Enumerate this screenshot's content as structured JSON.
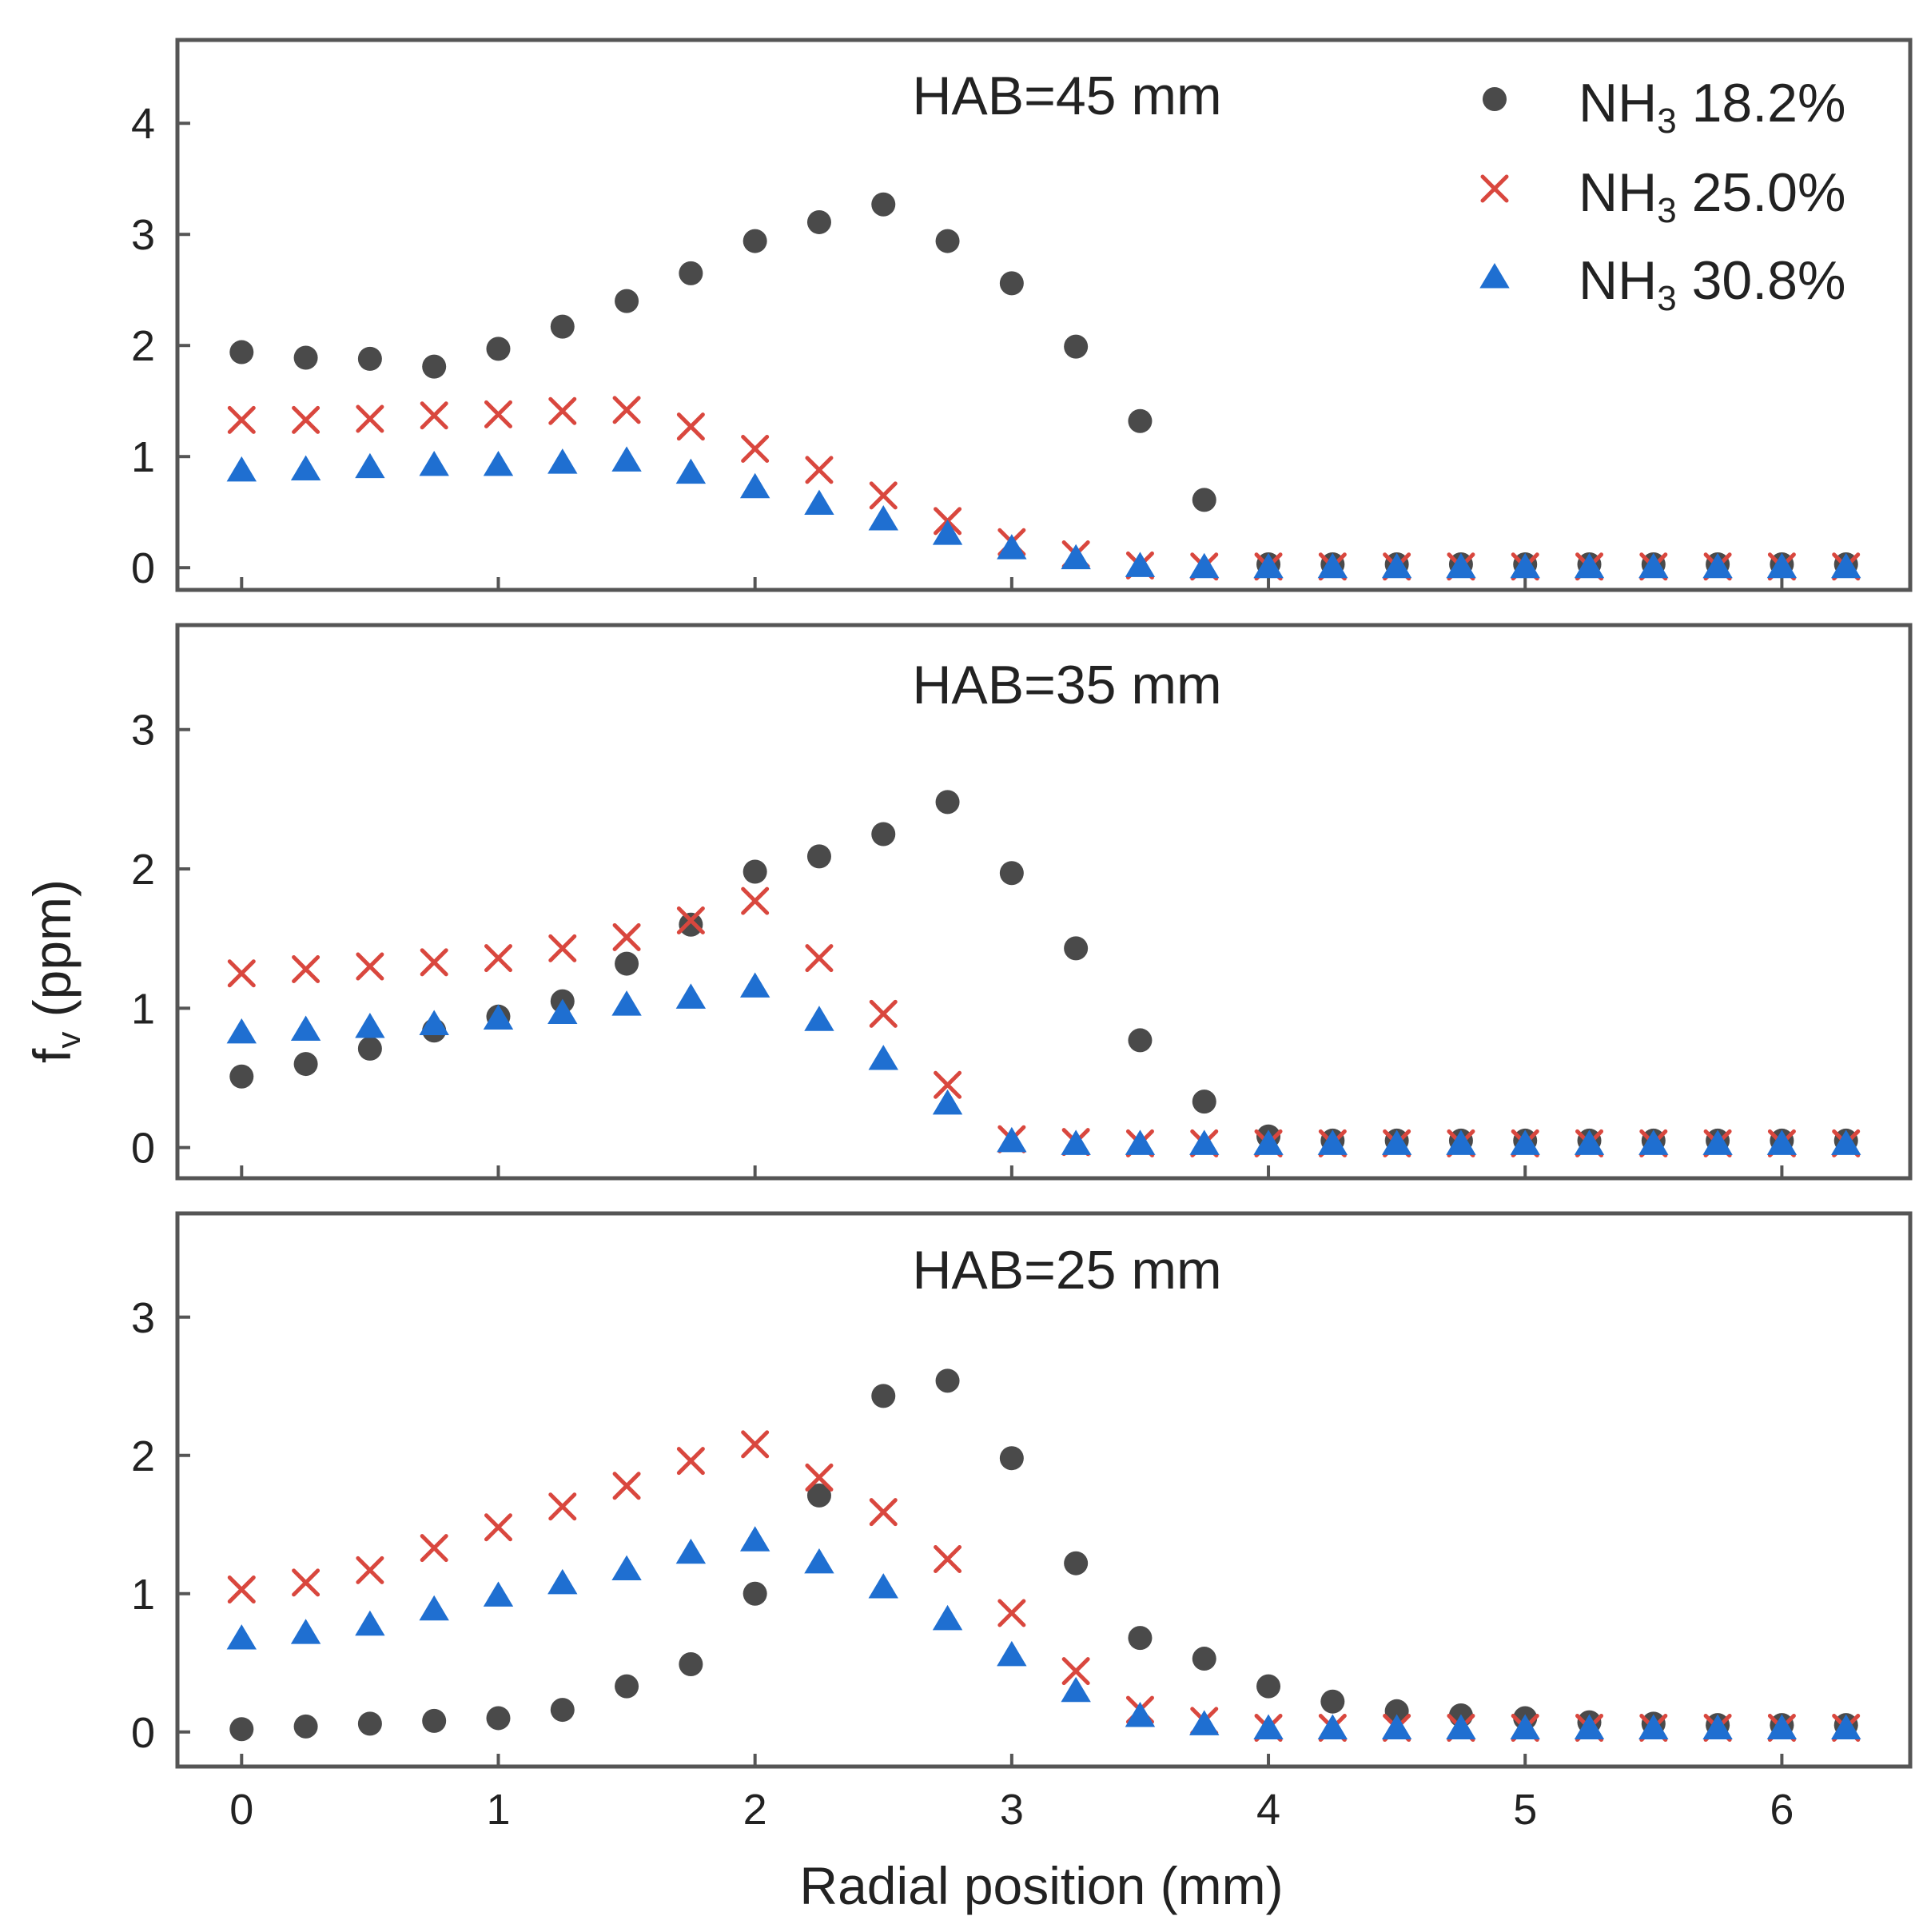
{
  "chart_data": {
    "type": "scatter",
    "xlabel": "Radial position (mm)",
    "ylabel_main": "f",
    "ylabel_sub": "v",
    "ylabel_unit": " (ppm)",
    "x": [
      0,
      0.25,
      0.5,
      0.75,
      1,
      1.25,
      1.5,
      1.75,
      2,
      2.25,
      2.5,
      2.75,
      3,
      3.25,
      3.5,
      3.75,
      4,
      4.25,
      4.5,
      4.75,
      5,
      5.25,
      5.5,
      5.75,
      6,
      6.25
    ],
    "xlim": [
      -0.25,
      6.5
    ],
    "xticks": [
      0,
      1,
      2,
      3,
      4,
      5,
      6
    ],
    "series_meta": [
      {
        "name_main": "NH",
        "name_sub": "3",
        "name_rest": " 18.2%",
        "marker": "circle",
        "color": "#4a4a4a"
      },
      {
        "name_main": "NH",
        "name_sub": "3",
        "name_rest": " 25.0%",
        "marker": "x",
        "color": "#d9473e"
      },
      {
        "name_main": "NH",
        "name_sub": "3",
        "name_rest": " 30.8%",
        "marker": "triangle",
        "color": "#1f6fd1"
      }
    ],
    "legend_position": "top-right",
    "panels": [
      {
        "title": "HAB=45 mm",
        "ylim": [
          -0.2,
          4.75
        ],
        "yticks": [
          0,
          1,
          2,
          3,
          4
        ],
        "series": [
          [
            1.94,
            1.89,
            1.88,
            1.81,
            1.97,
            2.17,
            2.4,
            2.65,
            2.94,
            3.11,
            3.27,
            2.94,
            2.56,
            1.99,
            1.32,
            0.61,
            0.03,
            0.03,
            0.03,
            0.03,
            0.03,
            0.03,
            0.03,
            0.03,
            0.03,
            0.03
          ],
          [
            1.33,
            1.33,
            1.34,
            1.37,
            1.38,
            1.41,
            1.42,
            1.27,
            1.07,
            0.88,
            0.65,
            0.42,
            0.23,
            0.12,
            0.02,
            0.01,
            0.01,
            0.01,
            0.01,
            0.01,
            0.01,
            0.01,
            0.01,
            0.01,
            0.01,
            0.01
          ],
          [
            0.88,
            0.89,
            0.91,
            0.93,
            0.93,
            0.95,
            0.97,
            0.86,
            0.73,
            0.58,
            0.44,
            0.31,
            0.18,
            0.09,
            0.02,
            0.01,
            0.01,
            0.01,
            0.01,
            0.01,
            0.01,
            0.01,
            0.01,
            0.01,
            0.01,
            0.01
          ]
        ]
      },
      {
        "title": "HAB=35 mm",
        "ylim": [
          -0.22,
          3.75
        ],
        "yticks": [
          0,
          1,
          2,
          3
        ],
        "series": [
          [
            0.51,
            0.6,
            0.71,
            0.84,
            0.94,
            1.05,
            1.32,
            1.6,
            1.98,
            2.09,
            2.25,
            2.48,
            1.97,
            1.43,
            0.77,
            0.33,
            0.08,
            0.05,
            0.05,
            0.05,
            0.05,
            0.05,
            0.05,
            0.05,
            0.05,
            0.05
          ],
          [
            1.25,
            1.28,
            1.3,
            1.33,
            1.36,
            1.43,
            1.51,
            1.63,
            1.77,
            1.36,
            0.96,
            0.45,
            0.06,
            0.04,
            0.03,
            0.03,
            0.03,
            0.03,
            0.03,
            0.03,
            0.03,
            0.03,
            0.03,
            0.03,
            0.03,
            0.03
          ],
          [
            0.83,
            0.85,
            0.87,
            0.89,
            0.93,
            0.97,
            1.03,
            1.08,
            1.16,
            0.92,
            0.64,
            0.32,
            0.05,
            0.03,
            0.03,
            0.03,
            0.03,
            0.03,
            0.03,
            0.03,
            0.03,
            0.03,
            0.03,
            0.03,
            0.03,
            0.03
          ]
        ]
      },
      {
        "title": "HAB=25 mm",
        "ylim": [
          -0.25,
          3.75
        ],
        "yticks": [
          0,
          1,
          2,
          3
        ],
        "series": [
          [
            0.02,
            0.04,
            0.06,
            0.08,
            0.1,
            0.16,
            0.33,
            0.49,
            1.0,
            1.71,
            2.43,
            2.54,
            1.98,
            1.22,
            0.68,
            0.53,
            0.33,
            0.22,
            0.15,
            0.12,
            0.1,
            0.07,
            0.06,
            0.05,
            0.05,
            0.05
          ],
          [
            1.03,
            1.08,
            1.17,
            1.33,
            1.48,
            1.63,
            1.78,
            1.96,
            2.08,
            1.84,
            1.59,
            1.25,
            0.86,
            0.44,
            0.16,
            0.08,
            0.03,
            0.03,
            0.03,
            0.03,
            0.03,
            0.03,
            0.03,
            0.03,
            0.03,
            0.03
          ],
          [
            0.68,
            0.72,
            0.78,
            0.89,
            0.99,
            1.08,
            1.18,
            1.3,
            1.39,
            1.23,
            1.05,
            0.82,
            0.56,
            0.3,
            0.12,
            0.06,
            0.03,
            0.03,
            0.03,
            0.03,
            0.03,
            0.03,
            0.03,
            0.03,
            0.03,
            0.03
          ]
        ]
      }
    ]
  }
}
